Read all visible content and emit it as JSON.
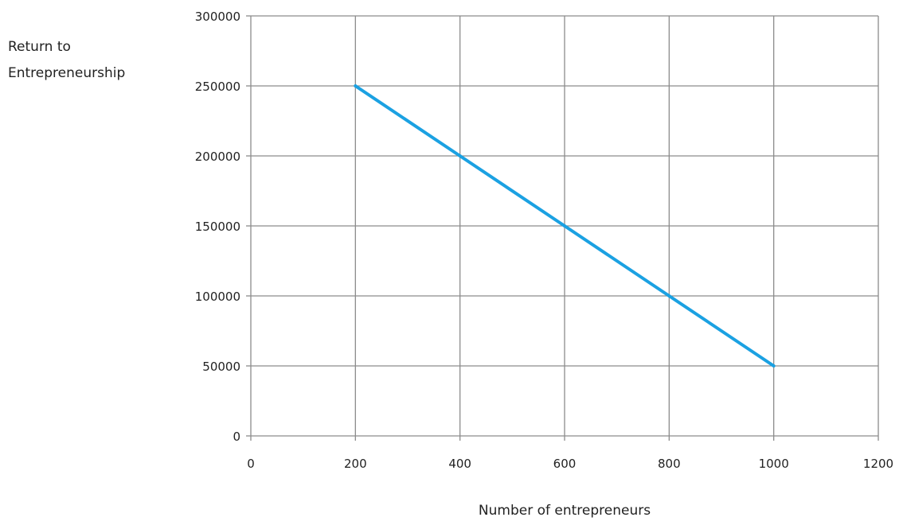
{
  "chart_data": {
    "type": "line",
    "title": "",
    "ylabel_lines": [
      "Return to",
      "Entrepreneurship"
    ],
    "xlabel": "Number of entrepreneurs",
    "x_ticks": [
      "0",
      "200",
      "400",
      "600",
      "800",
      "1000",
      "1200"
    ],
    "y_ticks": [
      "0",
      "50000",
      "100000",
      "150000",
      "200000",
      "250000",
      "300000"
    ],
    "xlim": [
      0,
      1200
    ],
    "ylim": [
      0,
      300000
    ],
    "grid": true,
    "legend": "none",
    "series": [
      {
        "color": "#1ba1e2",
        "x": [
          200,
          400,
          600,
          800,
          1000
        ],
        "y": [
          250000,
          200000,
          150000,
          100000,
          50000
        ]
      }
    ]
  }
}
